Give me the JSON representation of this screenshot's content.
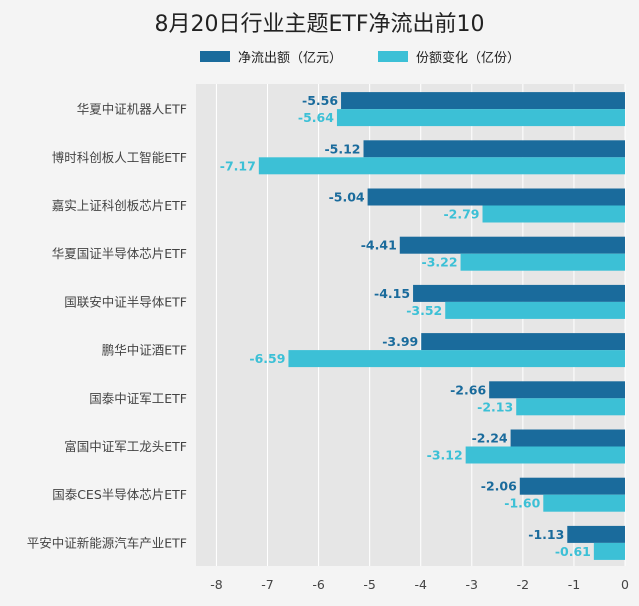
{
  "colors": {
    "primary": "#1a6b9c",
    "secondary": "#3cc0d6",
    "plot_bg": "#e6e6e6",
    "grid": "#ffffff",
    "page_bg": "#f4f4f4"
  },
  "chart_data": {
    "type": "bar",
    "orientation": "horizontal",
    "title": "8月20日行业主题ETF净流出前10",
    "categories": [
      "华夏中证机器人ETF",
      "博时科创板人工智能ETF",
      "嘉实上证科创板芯片ETF",
      "华夏国证半导体芯片ETF",
      "国联安中证半导体ETF",
      "鹏华中证酒ETF",
      "国泰中证军工ETF",
      "富国中证军工龙头ETF",
      "国泰CES半导体芯片ETF",
      "平安中证新能源汽车产业ETF"
    ],
    "series": [
      {
        "name": "净流出额（亿元）",
        "values": [
          -5.56,
          -5.12,
          -5.04,
          -4.41,
          -4.15,
          -3.99,
          -2.66,
          -2.24,
          -2.06,
          -1.13
        ]
      },
      {
        "name": "份额变化（亿份）",
        "values": [
          -5.64,
          -7.17,
          -2.79,
          -3.22,
          -3.52,
          -6.59,
          -2.13,
          -3.12,
          -1.6,
          -0.61
        ]
      }
    ],
    "labels": [
      [
        "-5.56",
        "-5.12",
        "-5.04",
        "-4.41",
        "-4.15",
        "-3.99",
        "-2.66",
        "-2.24",
        "-2.06",
        "-1.13"
      ],
      [
        "-5.64",
        "-7.17",
        "-2.79",
        "-3.22",
        "-3.52",
        "-6.59",
        "-2.13",
        "-3.12",
        "-1.60",
        "-0.61"
      ]
    ],
    "x_ticks": [
      "-8",
      "-7",
      "-6",
      "-5",
      "-4",
      "-3",
      "-2",
      "-1",
      "0"
    ],
    "xlim": [
      -8.4,
      0
    ],
    "grid": true,
    "legend_position": "top"
  }
}
